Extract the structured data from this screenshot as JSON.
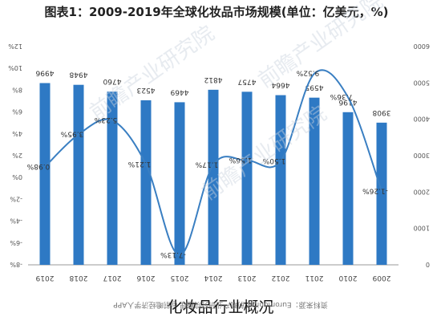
{
  "title": "图表1：2009-2019年全球化妆品市场规模(单位：亿美元，%)",
  "caption": "化妆品行业概况",
  "source": "资料来源：Euromonitor 前瞻产业研究院整理 @前瞻经济学人APP",
  "watermark": "前瞻产业研究院",
  "chart_data": {
    "type": "bar",
    "categories": [
      "2019",
      "2018",
      "2017",
      "2016",
      "2015",
      "2014",
      "2013",
      "2012",
      "2011",
      "2010",
      "2009"
    ],
    "series": [
      {
        "values": [
          4996,
          4948,
          4760,
          4523,
          4469,
          4812,
          4757,
          4664,
          4595,
          4196,
          3908
        ],
        "labels": [
          "4996",
          "4948",
          "4760",
          "4523",
          "4469",
          "4812",
          "4757",
          "4664",
          "4595",
          "4196",
          "3908"
        ],
        "color": "#2e79c4"
      },
      {
        "values": [
          0.98,
          3.95,
          5.23,
          1.21,
          -7.13,
          1.17,
          1.56,
          1.5,
          9.52,
          7.36,
          -1.26
        ],
        "labels": [
          "0.98%",
          "3.95%",
          "5.23%",
          "1.21%",
          "-7.13%",
          "1.17%",
          "1.56%",
          "1.50%",
          "9.52%",
          "7.36%",
          "-1.26%"
        ],
        "color": "#3a7fc2"
      }
    ],
    "left_axis": {
      "ylim": [
        -8,
        12
      ],
      "ticks": [
        "12%",
        "10%",
        "8%",
        "6%",
        "4%",
        "2%",
        "0%",
        "-2%",
        "-4%",
        "-6%",
        "-8%"
      ]
    },
    "right_axis": {
      "ylim": [
        0,
        6000
      ],
      "ticks": [
        "6000",
        "5000",
        "4000",
        "3000",
        "2000",
        "1000",
        "0"
      ]
    },
    "grid": false
  }
}
